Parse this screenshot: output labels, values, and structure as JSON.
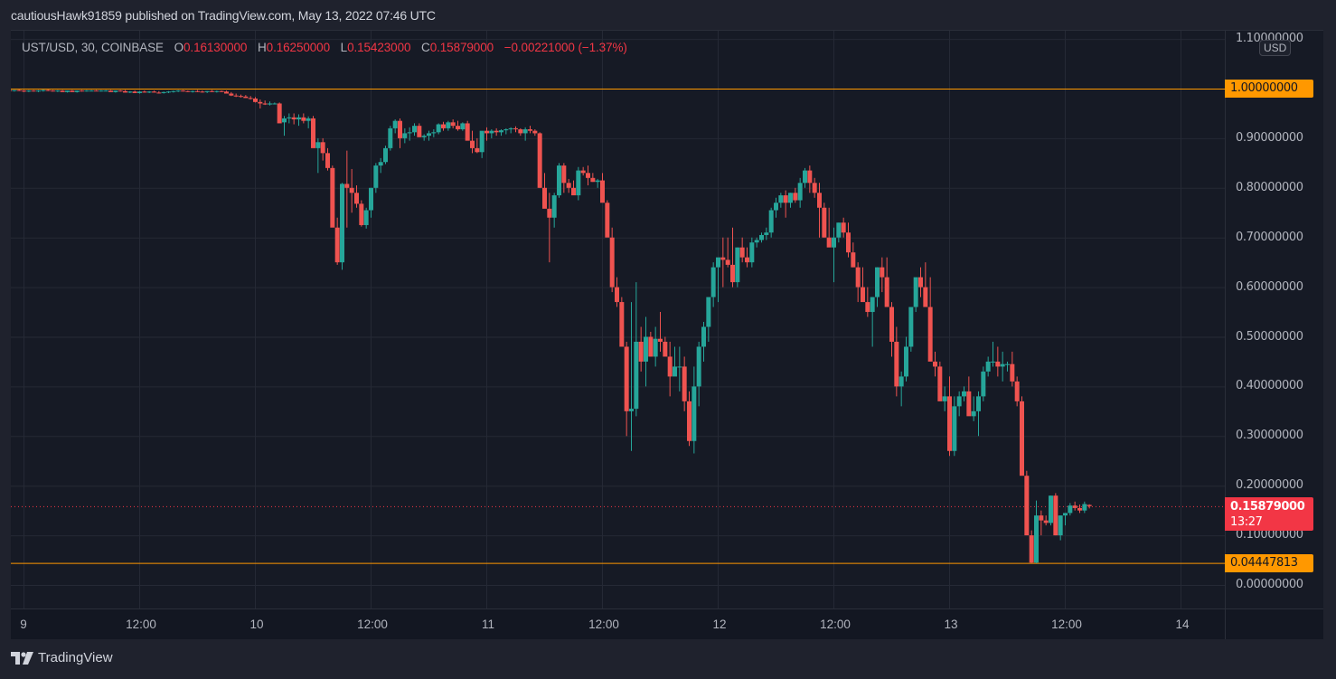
{
  "header": {
    "published_text": "cautiousHawk91859 published on TradingView.com, May 13, 2022 07:46 UTC"
  },
  "legend": {
    "symbol": "UST/USD, 30, COINBASE",
    "o_label": "O",
    "o_value": "0.16130000",
    "h_label": "H",
    "h_value": "0.16250000",
    "l_label": "L",
    "l_value": "0.15423000",
    "c_label": "C",
    "c_value": "0.15879000",
    "change": "−0.00221000 (−1.37%)"
  },
  "price_axis": {
    "currency_button": "USD",
    "labels": [
      "1.10000000",
      "1.00000000",
      "0.90000000",
      "0.80000000",
      "0.70000000",
      "0.60000000",
      "0.50000000",
      "0.40000000",
      "0.30000000",
      "0.20000000",
      "0.10000000",
      "0.00000000"
    ],
    "line_top_tag": "1.00000000",
    "line_bottom_tag": "0.04447813",
    "last_price_tag": "0.15879000",
    "countdown": "13:27"
  },
  "time_axis": {
    "labels": [
      "9",
      "12:00",
      "10",
      "12:00",
      "11",
      "12:00",
      "12",
      "12:00",
      "13",
      "12:00",
      "14"
    ]
  },
  "footer": {
    "brand": "TradingView"
  },
  "colors": {
    "up": "#26a69a",
    "down": "#ef5350",
    "horizontal_line": "#ff9800",
    "last_price": "#f23645",
    "background": "#161a25",
    "grid": "#252935",
    "text": "#b2b5be"
  },
  "chart_data": {
    "type": "candlestick",
    "title": "UST/USD, 30, COINBASE",
    "xlabel": "",
    "ylabel": "USD",
    "ylim": [
      -0.02,
      1.1
    ],
    "interval": "30m",
    "grid": true,
    "x_ticks": [
      "9",
      "12:00",
      "10",
      "12:00",
      "11",
      "12:00",
      "12",
      "12:00",
      "13",
      "12:00",
      "14"
    ],
    "y_ticks": [
      0.0,
      0.1,
      0.2,
      0.3,
      0.4,
      0.5,
      0.6,
      0.7,
      0.8,
      0.9,
      1.0,
      1.1
    ],
    "horizontal_lines": [
      1.0,
      0.04447813
    ],
    "last_price": 0.15879,
    "last_candle": {
      "open": 0.1613,
      "high": 0.1625,
      "low": 0.15423,
      "close": 0.15879
    },
    "start_time": "2022-05-08 22:00",
    "candles": [
      [
        0.996,
        0.998,
        0.994,
        0.997
      ],
      [
        0.997,
        0.998,
        0.995,
        0.996
      ],
      [
        0.996,
        0.997,
        0.994,
        0.997
      ],
      [
        0.997,
        0.998,
        0.995,
        0.996
      ],
      [
        0.996,
        0.997,
        0.993,
        0.994
      ],
      [
        0.994,
        0.997,
        0.993,
        0.996
      ],
      [
        0.996,
        0.997,
        0.994,
        0.995
      ],
      [
        0.995,
        0.997,
        0.993,
        0.996
      ],
      [
        0.996,
        0.998,
        0.994,
        0.997
      ],
      [
        0.997,
        0.998,
        0.995,
        0.996
      ],
      [
        0.996,
        0.997,
        0.994,
        0.995
      ],
      [
        0.995,
        0.997,
        0.993,
        0.996
      ],
      [
        0.996,
        0.997,
        0.994,
        0.993
      ],
      [
        0.993,
        0.996,
        0.992,
        0.996
      ],
      [
        0.996,
        0.997,
        0.994,
        0.993
      ],
      [
        0.993,
        0.996,
        0.992,
        0.996
      ],
      [
        0.996,
        0.997,
        0.994,
        0.995
      ],
      [
        0.995,
        0.997,
        0.994,
        0.996
      ],
      [
        0.996,
        0.997,
        0.995,
        0.996
      ],
      [
        0.996,
        0.997,
        0.995,
        0.995
      ],
      [
        0.995,
        0.997,
        0.994,
        0.996
      ],
      [
        0.996,
        0.997,
        0.995,
        0.996
      ],
      [
        0.996,
        0.997,
        0.994,
        0.993
      ],
      [
        0.993,
        0.996,
        0.992,
        0.996
      ],
      [
        0.996,
        0.997,
        0.994,
        0.995
      ],
      [
        0.995,
        0.997,
        0.992,
        0.992
      ],
      [
        0.992,
        0.995,
        0.991,
        0.994
      ],
      [
        0.994,
        0.996,
        0.992,
        0.991
      ],
      [
        0.991,
        0.995,
        0.99,
        0.994
      ],
      [
        0.994,
        0.996,
        0.992,
        0.992
      ],
      [
        0.992,
        0.995,
        0.991,
        0.994
      ],
      [
        0.994,
        0.996,
        0.992,
        0.992
      ],
      [
        0.992,
        0.995,
        0.99,
        0.991
      ],
      [
        0.991,
        0.994,
        0.99,
        0.993
      ],
      [
        0.993,
        0.995,
        0.991,
        0.994
      ],
      [
        0.994,
        0.996,
        0.992,
        0.995
      ],
      [
        0.995,
        0.997,
        0.993,
        0.996
      ],
      [
        0.996,
        0.997,
        0.994,
        0.995
      ],
      [
        0.995,
        0.996,
        0.993,
        0.994
      ],
      [
        0.994,
        0.996,
        0.992,
        0.995
      ],
      [
        0.995,
        0.997,
        0.993,
        0.994
      ],
      [
        0.994,
        0.996,
        0.992,
        0.993
      ],
      [
        0.993,
        0.995,
        0.991,
        0.995
      ],
      [
        0.995,
        0.997,
        0.993,
        0.994
      ],
      [
        0.994,
        0.996,
        0.992,
        0.995
      ],
      [
        0.995,
        0.996,
        0.993,
        0.994
      ],
      [
        0.994,
        0.996,
        0.99,
        0.99
      ],
      [
        0.99,
        0.993,
        0.985,
        0.986
      ],
      [
        0.986,
        0.99,
        0.983,
        0.985
      ],
      [
        0.985,
        0.988,
        0.982,
        0.984
      ],
      [
        0.984,
        0.987,
        0.981,
        0.981
      ],
      [
        0.981,
        0.985,
        0.978,
        0.98
      ],
      [
        0.98,
        0.983,
        0.972,
        0.973
      ],
      [
        0.973,
        0.978,
        0.96,
        0.97
      ],
      [
        0.97,
        0.976,
        0.967,
        0.968
      ],
      [
        0.968,
        0.974,
        0.966,
        0.97
      ],
      [
        0.97,
        0.972,
        0.968,
        0.97
      ],
      [
        0.97,
        0.972,
        0.94,
        0.93
      ],
      [
        0.932,
        0.945,
        0.905,
        0.94
      ],
      [
        0.94,
        0.95,
        0.93,
        0.942
      ],
      [
        0.942,
        0.95,
        0.928,
        0.938
      ],
      [
        0.938,
        0.948,
        0.925,
        0.942
      ],
      [
        0.942,
        0.95,
        0.93,
        0.935
      ],
      [
        0.935,
        0.944,
        0.92,
        0.94
      ],
      [
        0.94,
        0.945,
        0.91,
        0.88
      ],
      [
        0.88,
        0.9,
        0.83,
        0.892
      ],
      [
        0.892,
        0.9,
        0.855,
        0.87
      ],
      [
        0.87,
        0.88,
        0.835,
        0.84
      ],
      [
        0.84,
        0.845,
        0.73,
        0.72
      ],
      [
        0.72,
        0.74,
        0.645,
        0.65
      ],
      [
        0.65,
        0.81,
        0.635,
        0.808
      ],
      [
        0.808,
        0.875,
        0.72,
        0.8
      ],
      [
        0.8,
        0.838,
        0.75,
        0.79
      ],
      [
        0.79,
        0.805,
        0.76,
        0.768
      ],
      [
        0.768,
        0.775,
        0.722,
        0.725
      ],
      [
        0.725,
        0.76,
        0.718,
        0.755
      ],
      [
        0.755,
        0.8,
        0.74,
        0.8
      ],
      [
        0.8,
        0.85,
        0.79,
        0.845
      ],
      [
        0.845,
        0.86,
        0.83,
        0.852
      ],
      [
        0.852,
        0.885,
        0.848,
        0.88
      ],
      [
        0.88,
        0.925,
        0.875,
        0.92
      ],
      [
        0.92,
        0.938,
        0.91,
        0.935
      ],
      [
        0.935,
        0.94,
        0.88,
        0.9
      ],
      [
        0.9,
        0.92,
        0.89,
        0.91
      ],
      [
        0.91,
        0.922,
        0.895,
        0.912
      ],
      [
        0.912,
        0.93,
        0.905,
        0.925
      ],
      [
        0.925,
        0.93,
        0.91,
        0.902
      ],
      [
        0.902,
        0.908,
        0.895,
        0.905
      ],
      [
        0.905,
        0.915,
        0.895,
        0.91
      ],
      [
        0.91,
        0.918,
        0.902,
        0.912
      ],
      [
        0.912,
        0.93,
        0.908,
        0.928
      ],
      [
        0.928,
        0.933,
        0.915,
        0.92
      ],
      [
        0.92,
        0.935,
        0.915,
        0.932
      ],
      [
        0.932,
        0.938,
        0.92,
        0.925
      ],
      [
        0.925,
        0.935,
        0.915,
        0.918
      ],
      [
        0.918,
        0.932,
        0.915,
        0.93
      ],
      [
        0.93,
        0.935,
        0.9,
        0.895
      ],
      [
        0.895,
        0.915,
        0.87,
        0.88
      ],
      [
        0.88,
        0.9,
        0.87,
        0.872
      ],
      [
        0.872,
        0.88,
        0.86,
        0.915
      ],
      [
        0.915,
        0.922,
        0.895,
        0.91
      ],
      [
        0.91,
        0.918,
        0.9,
        0.915
      ],
      [
        0.915,
        0.92,
        0.905,
        0.912
      ],
      [
        0.912,
        0.918,
        0.905,
        0.916
      ],
      [
        0.916,
        0.92,
        0.908,
        0.918
      ],
      [
        0.918,
        0.922,
        0.91,
        0.92
      ],
      [
        0.92,
        0.924,
        0.912,
        0.918
      ],
      [
        0.918,
        0.92,
        0.905,
        0.91
      ],
      [
        0.91,
        0.922,
        0.895,
        0.918
      ],
      [
        0.918,
        0.925,
        0.91,
        0.915
      ],
      [
        0.915,
        0.918,
        0.905,
        0.91
      ],
      [
        0.91,
        0.912,
        0.8,
        0.8
      ],
      [
        0.8,
        0.83,
        0.76,
        0.758
      ],
      [
        0.758,
        0.79,
        0.65,
        0.74
      ],
      [
        0.74,
        0.79,
        0.72,
        0.785
      ],
      [
        0.785,
        0.85,
        0.78,
        0.845
      ],
      [
        0.845,
        0.85,
        0.79,
        0.81
      ],
      [
        0.81,
        0.818,
        0.79,
        0.8
      ],
      [
        0.8,
        0.815,
        0.79,
        0.785
      ],
      [
        0.785,
        0.842,
        0.775,
        0.835
      ],
      [
        0.835,
        0.842,
        0.825,
        0.83
      ],
      [
        0.83,
        0.845,
        0.805,
        0.82
      ],
      [
        0.82,
        0.83,
        0.812,
        0.812
      ],
      [
        0.812,
        0.818,
        0.8,
        0.815
      ],
      [
        0.815,
        0.83,
        0.78,
        0.77
      ],
      [
        0.77,
        0.775,
        0.72,
        0.7
      ],
      [
        0.7,
        0.72,
        0.59,
        0.6
      ],
      [
        0.6,
        0.62,
        0.56,
        0.57
      ],
      [
        0.57,
        0.58,
        0.5,
        0.48
      ],
      [
        0.48,
        0.49,
        0.3,
        0.35
      ],
      [
        0.35,
        0.57,
        0.27,
        0.355
      ],
      [
        0.355,
        0.61,
        0.34,
        0.49
      ],
      [
        0.49,
        0.52,
        0.43,
        0.45
      ],
      [
        0.45,
        0.54,
        0.4,
        0.5
      ],
      [
        0.5,
        0.51,
        0.46,
        0.46
      ],
      [
        0.46,
        0.52,
        0.44,
        0.496
      ],
      [
        0.496,
        0.55,
        0.47,
        0.49
      ],
      [
        0.49,
        0.5,
        0.47,
        0.46
      ],
      [
        0.46,
        0.49,
        0.38,
        0.42
      ],
      [
        0.42,
        0.48,
        0.44,
        0.44
      ],
      [
        0.44,
        0.48,
        0.39,
        0.44
      ],
      [
        0.44,
        0.46,
        0.35,
        0.37
      ],
      [
        0.37,
        0.39,
        0.28,
        0.29
      ],
      [
        0.29,
        0.44,
        0.265,
        0.4
      ],
      [
        0.4,
        0.49,
        0.36,
        0.48
      ],
      [
        0.48,
        0.53,
        0.45,
        0.52
      ],
      [
        0.52,
        0.56,
        0.49,
        0.58
      ],
      [
        0.58,
        0.65,
        0.56,
        0.64
      ],
      [
        0.64,
        0.64,
        0.57,
        0.66
      ],
      [
        0.66,
        0.7,
        0.6,
        0.655
      ],
      [
        0.655,
        0.7,
        0.64,
        0.645
      ],
      [
        0.645,
        0.72,
        0.6,
        0.61
      ],
      [
        0.61,
        0.68,
        0.6,
        0.68
      ],
      [
        0.68,
        0.7,
        0.65,
        0.66
      ],
      [
        0.66,
        0.68,
        0.64,
        0.65
      ],
      [
        0.65,
        0.7,
        0.64,
        0.69
      ],
      [
        0.69,
        0.7,
        0.68,
        0.695
      ],
      [
        0.695,
        0.71,
        0.69,
        0.705
      ],
      [
        0.705,
        0.72,
        0.695,
        0.71
      ],
      [
        0.71,
        0.76,
        0.7,
        0.755
      ],
      [
        0.755,
        0.78,
        0.74,
        0.77
      ],
      [
        0.77,
        0.79,
        0.76,
        0.785
      ],
      [
        0.785,
        0.795,
        0.74,
        0.77
      ],
      [
        0.77,
        0.79,
        0.76,
        0.79
      ],
      [
        0.79,
        0.8,
        0.77,
        0.775
      ],
      [
        0.775,
        0.82,
        0.76,
        0.81
      ],
      [
        0.81,
        0.84,
        0.8,
        0.835
      ],
      [
        0.835,
        0.845,
        0.79,
        0.81
      ],
      [
        0.81,
        0.82,
        0.78,
        0.79
      ],
      [
        0.79,
        0.81,
        0.7,
        0.76
      ],
      [
        0.76,
        0.77,
        0.7,
        0.7
      ],
      [
        0.7,
        0.76,
        0.69,
        0.68
      ],
      [
        0.68,
        0.72,
        0.61,
        0.7
      ],
      [
        0.7,
        0.73,
        0.69,
        0.73
      ],
      [
        0.73,
        0.74,
        0.7,
        0.71
      ],
      [
        0.71,
        0.73,
        0.66,
        0.67
      ],
      [
        0.67,
        0.69,
        0.64,
        0.64
      ],
      [
        0.64,
        0.65,
        0.57,
        0.6
      ],
      [
        0.6,
        0.64,
        0.58,
        0.57
      ],
      [
        0.57,
        0.6,
        0.54,
        0.55
      ],
      [
        0.55,
        0.58,
        0.48,
        0.58
      ],
      [
        0.58,
        0.64,
        0.56,
        0.64
      ],
      [
        0.64,
        0.66,
        0.59,
        0.62
      ],
      [
        0.62,
        0.66,
        0.6,
        0.56
      ],
      [
        0.56,
        0.57,
        0.46,
        0.49
      ],
      [
        0.49,
        0.52,
        0.38,
        0.4
      ],
      [
        0.4,
        0.43,
        0.36,
        0.42
      ],
      [
        0.42,
        0.5,
        0.41,
        0.48
      ],
      [
        0.48,
        0.54,
        0.47,
        0.56
      ],
      [
        0.56,
        0.6,
        0.55,
        0.62
      ],
      [
        0.62,
        0.64,
        0.58,
        0.6
      ],
      [
        0.6,
        0.65,
        0.59,
        0.56
      ],
      [
        0.56,
        0.62,
        0.52,
        0.45
      ],
      [
        0.45,
        0.47,
        0.42,
        0.44
      ],
      [
        0.44,
        0.45,
        0.38,
        0.37
      ],
      [
        0.37,
        0.4,
        0.35,
        0.38
      ],
      [
        0.38,
        0.42,
        0.26,
        0.27
      ],
      [
        0.27,
        0.38,
        0.26,
        0.36
      ],
      [
        0.36,
        0.39,
        0.34,
        0.38
      ],
      [
        0.38,
        0.4,
        0.37,
        0.39
      ],
      [
        0.39,
        0.42,
        0.35,
        0.34
      ],
      [
        0.34,
        0.38,
        0.33,
        0.35
      ],
      [
        0.35,
        0.39,
        0.3,
        0.38
      ],
      [
        0.38,
        0.44,
        0.37,
        0.43
      ],
      [
        0.43,
        0.46,
        0.42,
        0.45
      ],
      [
        0.45,
        0.49,
        0.44,
        0.45
      ],
      [
        0.45,
        0.48,
        0.42,
        0.44
      ],
      [
        0.44,
        0.47,
        0.41,
        0.445
      ],
      [
        0.445,
        0.45,
        0.43,
        0.445
      ],
      [
        0.445,
        0.47,
        0.4,
        0.41
      ],
      [
        0.41,
        0.42,
        0.36,
        0.37
      ],
      [
        0.37,
        0.38,
        0.25,
        0.22
      ],
      [
        0.22,
        0.23,
        0.2,
        0.1
      ],
      [
        0.1,
        0.11,
        0.044,
        0.045
      ],
      [
        0.045,
        0.17,
        0.044,
        0.14
      ],
      [
        0.14,
        0.15,
        0.1,
        0.13
      ],
      [
        0.13,
        0.14,
        0.12,
        0.125
      ],
      [
        0.125,
        0.18,
        0.12,
        0.18
      ],
      [
        0.18,
        0.185,
        0.1,
        0.1
      ],
      [
        0.1,
        0.14,
        0.09,
        0.14
      ],
      [
        0.14,
        0.145,
        0.12,
        0.145
      ],
      [
        0.145,
        0.165,
        0.14,
        0.16
      ],
      [
        0.16,
        0.168,
        0.15,
        0.155
      ],
      [
        0.155,
        0.162,
        0.145,
        0.15
      ],
      [
        0.15,
        0.168,
        0.145,
        0.163
      ],
      [
        0.1613,
        0.1625,
        0.15423,
        0.15879
      ]
    ]
  }
}
